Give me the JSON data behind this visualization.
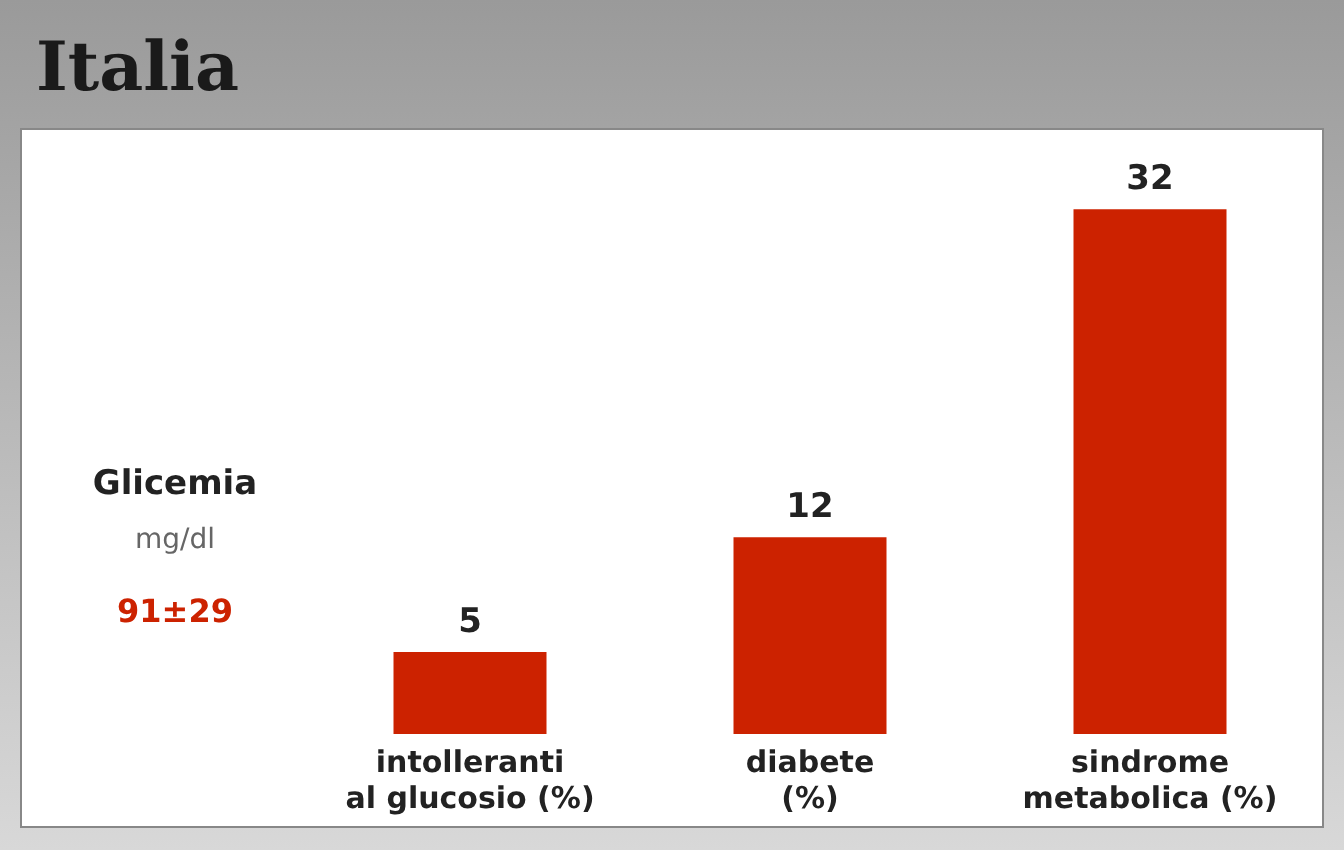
{
  "chart_data": {
    "type": "bar",
    "title": "Italia",
    "categories": [
      "intolleranti\nal glucosio (%)",
      "diabete\n(%)",
      "sindrome\nmetabolica (%)"
    ],
    "values": [
      5,
      12,
      32
    ],
    "color": "#cc2200",
    "data_labels": true,
    "grid": false,
    "legend": false,
    "annotations": [
      "Glicemia",
      "mg/dl",
      "91±29"
    ]
  }
}
